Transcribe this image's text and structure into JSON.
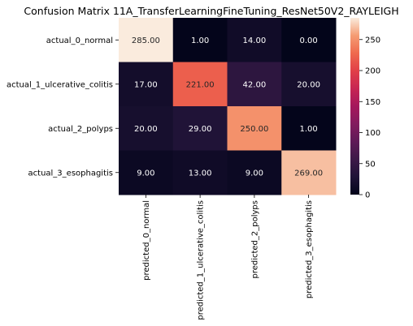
{
  "chart_data": {
    "type": "heatmap",
    "title": "Confusion Matrix 11A_TransferLearningFineTuning_ResNet50V2_RAYLEIGH",
    "xlabel": "",
    "ylabel": "",
    "row_labels": [
      "actual_0_normal",
      "actual_1_ulcerative_colitis",
      "actual_2_polyps",
      "actual_3_esophagitis"
    ],
    "col_labels": [
      "predicted_0_normal",
      "predicted_1_ulcerative_colitis",
      "predicted_2_polyps",
      "predicted_3_esophagitis"
    ],
    "values": [
      [
        285,
        1,
        14,
        0
      ],
      [
        17,
        221,
        42,
        20
      ],
      [
        20,
        29,
        250,
        1
      ],
      [
        9,
        13,
        9,
        269
      ]
    ],
    "value_labels": [
      [
        "285.00",
        "1.00",
        "14.00",
        "0.00"
      ],
      [
        "17.00",
        "221.00",
        "42.00",
        "20.00"
      ],
      [
        "20.00",
        "29.00",
        "250.00",
        "1.00"
      ],
      [
        "9.00",
        "13.00",
        "9.00",
        "269.00"
      ]
    ],
    "colormap": "rocket",
    "colorbar": {
      "range": [
        0,
        285
      ],
      "ticks": [
        0,
        50,
        100,
        150,
        200,
        250
      ],
      "tick_labels": [
        "0",
        "50",
        "100",
        "150",
        "200",
        "250"
      ]
    }
  }
}
